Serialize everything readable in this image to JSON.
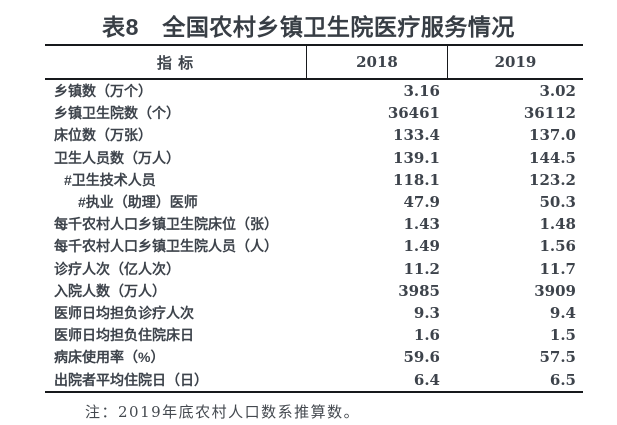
{
  "title": "表8　全国农村乡镇卫生院医疗服务情况",
  "table": {
    "columns": [
      "指 标",
      "2018",
      "2019"
    ],
    "rows": [
      {
        "indicator": "乡镇数（万个）",
        "indent": 0,
        "v2018": "3.16",
        "v2019": "3.02"
      },
      {
        "indicator": "乡镇卫生院数（个）",
        "indent": 0,
        "v2018": "36461",
        "v2019": "36112"
      },
      {
        "indicator": "床位数（万张）",
        "indent": 0,
        "v2018": "133.4",
        "v2019": "137.0"
      },
      {
        "indicator": "卫生人员数（万人）",
        "indent": 0,
        "v2018": "139.1",
        "v2019": "144.5"
      },
      {
        "indicator": "#卫生技术人员",
        "indent": 1,
        "v2018": "118.1",
        "v2019": "123.2"
      },
      {
        "indicator": "#执业（助理）医师",
        "indent": 2,
        "v2018": "47.9",
        "v2019": "50.3"
      },
      {
        "indicator": "每千农村人口乡镇卫生院床位（张）",
        "indent": 0,
        "v2018": "1.43",
        "v2019": "1.48"
      },
      {
        "indicator": "每千农村人口乡镇卫生院人员（人）",
        "indent": 0,
        "v2018": "1.49",
        "v2019": "1.56"
      },
      {
        "indicator": "诊疗人次（亿人次）",
        "indent": 0,
        "v2018": "11.2",
        "v2019": "11.7"
      },
      {
        "indicator": "入院人数（万人）",
        "indent": 0,
        "v2018": "3985",
        "v2019": "3909"
      },
      {
        "indicator": "医师日均担负诊疗人次",
        "indent": 0,
        "v2018": "9.3",
        "v2019": "9.4"
      },
      {
        "indicator": "医师日均担负住院床日",
        "indent": 0,
        "v2018": "1.6",
        "v2019": "1.5"
      },
      {
        "indicator": "病床使用率（%）",
        "indent": 0,
        "v2018": "59.6",
        "v2019": "57.5"
      },
      {
        "indicator": "出院者平均住院日（日）",
        "indent": 0,
        "v2018": "6.4",
        "v2019": "6.5"
      }
    ]
  },
  "note": "注：2019年底农村人口数系推算数。",
  "colors": {
    "text": "#3d434b",
    "title_text": "#383e45",
    "rule": "#17191c",
    "background": "#ffffff"
  }
}
